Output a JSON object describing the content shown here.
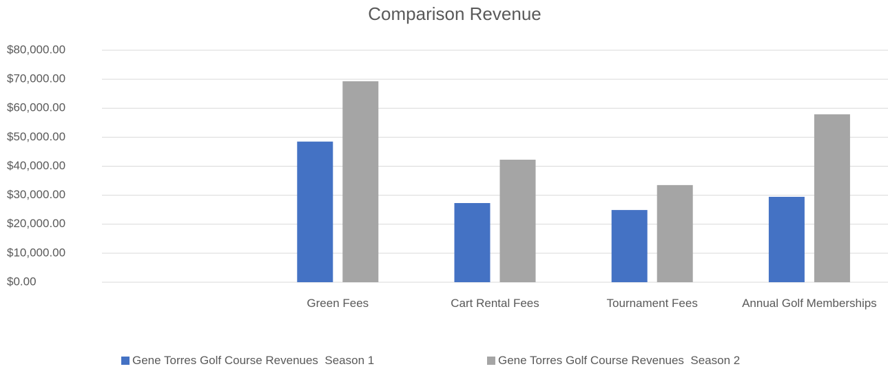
{
  "chart_data": {
    "type": "bar",
    "title": "Comparison Revenue",
    "categories": [
      null,
      "Green Fees",
      "Cart Rental Fees",
      "Tournament Fees",
      "Annual Golf Memberships"
    ],
    "series": [
      {
        "name": "Gene Torres Golf Course Revenues  Season 1",
        "color": "#4472c4",
        "values": [
          null,
          48500,
          27300,
          24900,
          29450
        ]
      },
      {
        "name": "Gene Torres Golf Course Revenues  Season 2",
        "color": "#a5a5a5",
        "values": [
          null,
          69300,
          42250,
          33500,
          57900
        ]
      }
    ],
    "ylim": [
      0,
      80000
    ],
    "yticks": [
      {
        "value": 0,
        "label": "$0.00"
      },
      {
        "value": 10000,
        "label": "$10,000.00"
      },
      {
        "value": 20000,
        "label": "$20,000.00"
      },
      {
        "value": 30000,
        "label": "$30,000.00"
      },
      {
        "value": 40000,
        "label": "$40,000.00"
      },
      {
        "value": 50000,
        "label": "$50,000.00"
      },
      {
        "value": 60000,
        "label": "$60,000.00"
      },
      {
        "value": 70000,
        "label": "$70,000.00"
      },
      {
        "value": 80000,
        "label": "$80,000.00"
      }
    ],
    "grid": true,
    "legend": "bottom"
  }
}
